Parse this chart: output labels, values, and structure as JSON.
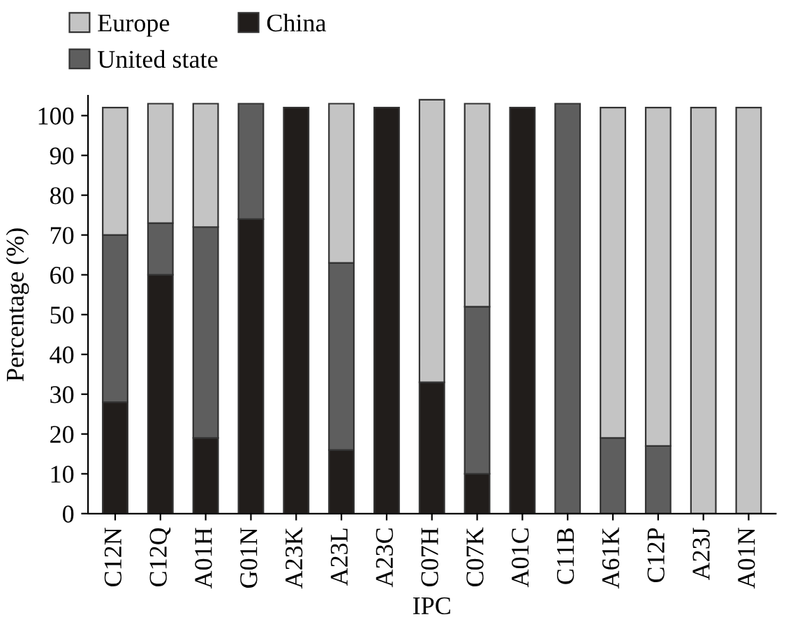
{
  "chart_data": {
    "type": "bar",
    "stacked": true,
    "xlabel": "IPC",
    "ylabel": "Percentage (%)",
    "categories": [
      "C12N",
      "C12Q",
      "A01H",
      "G01N",
      "A23K",
      "A23L",
      "A23C",
      "C07H",
      "C07K",
      "A01C",
      "C11B",
      "A61K",
      "C12P",
      "A23J",
      "A01N"
    ],
    "series": [
      {
        "name": "China",
        "color": "#211d1b",
        "values": [
          28,
          60,
          19,
          74,
          102,
          16,
          102,
          33,
          10,
          102,
          0,
          0,
          0,
          0,
          0
        ]
      },
      {
        "name": "United state",
        "color": "#5e5e5e",
        "values": [
          42,
          13,
          53,
          29,
          0,
          47,
          0,
          0,
          42,
          0,
          103,
          19,
          17,
          0,
          0
        ]
      },
      {
        "name": "Europe",
        "color": "#c4c4c4",
        "values": [
          32,
          30,
          31,
          0,
          0,
          40,
          0,
          71,
          51,
          0,
          0,
          83,
          85,
          102,
          102
        ]
      }
    ],
    "ylim": [
      0,
      105
    ],
    "yticks": [
      0,
      10,
      20,
      30,
      40,
      50,
      60,
      70,
      80,
      90,
      100
    ],
    "legend": "top left",
    "grid": false
  }
}
